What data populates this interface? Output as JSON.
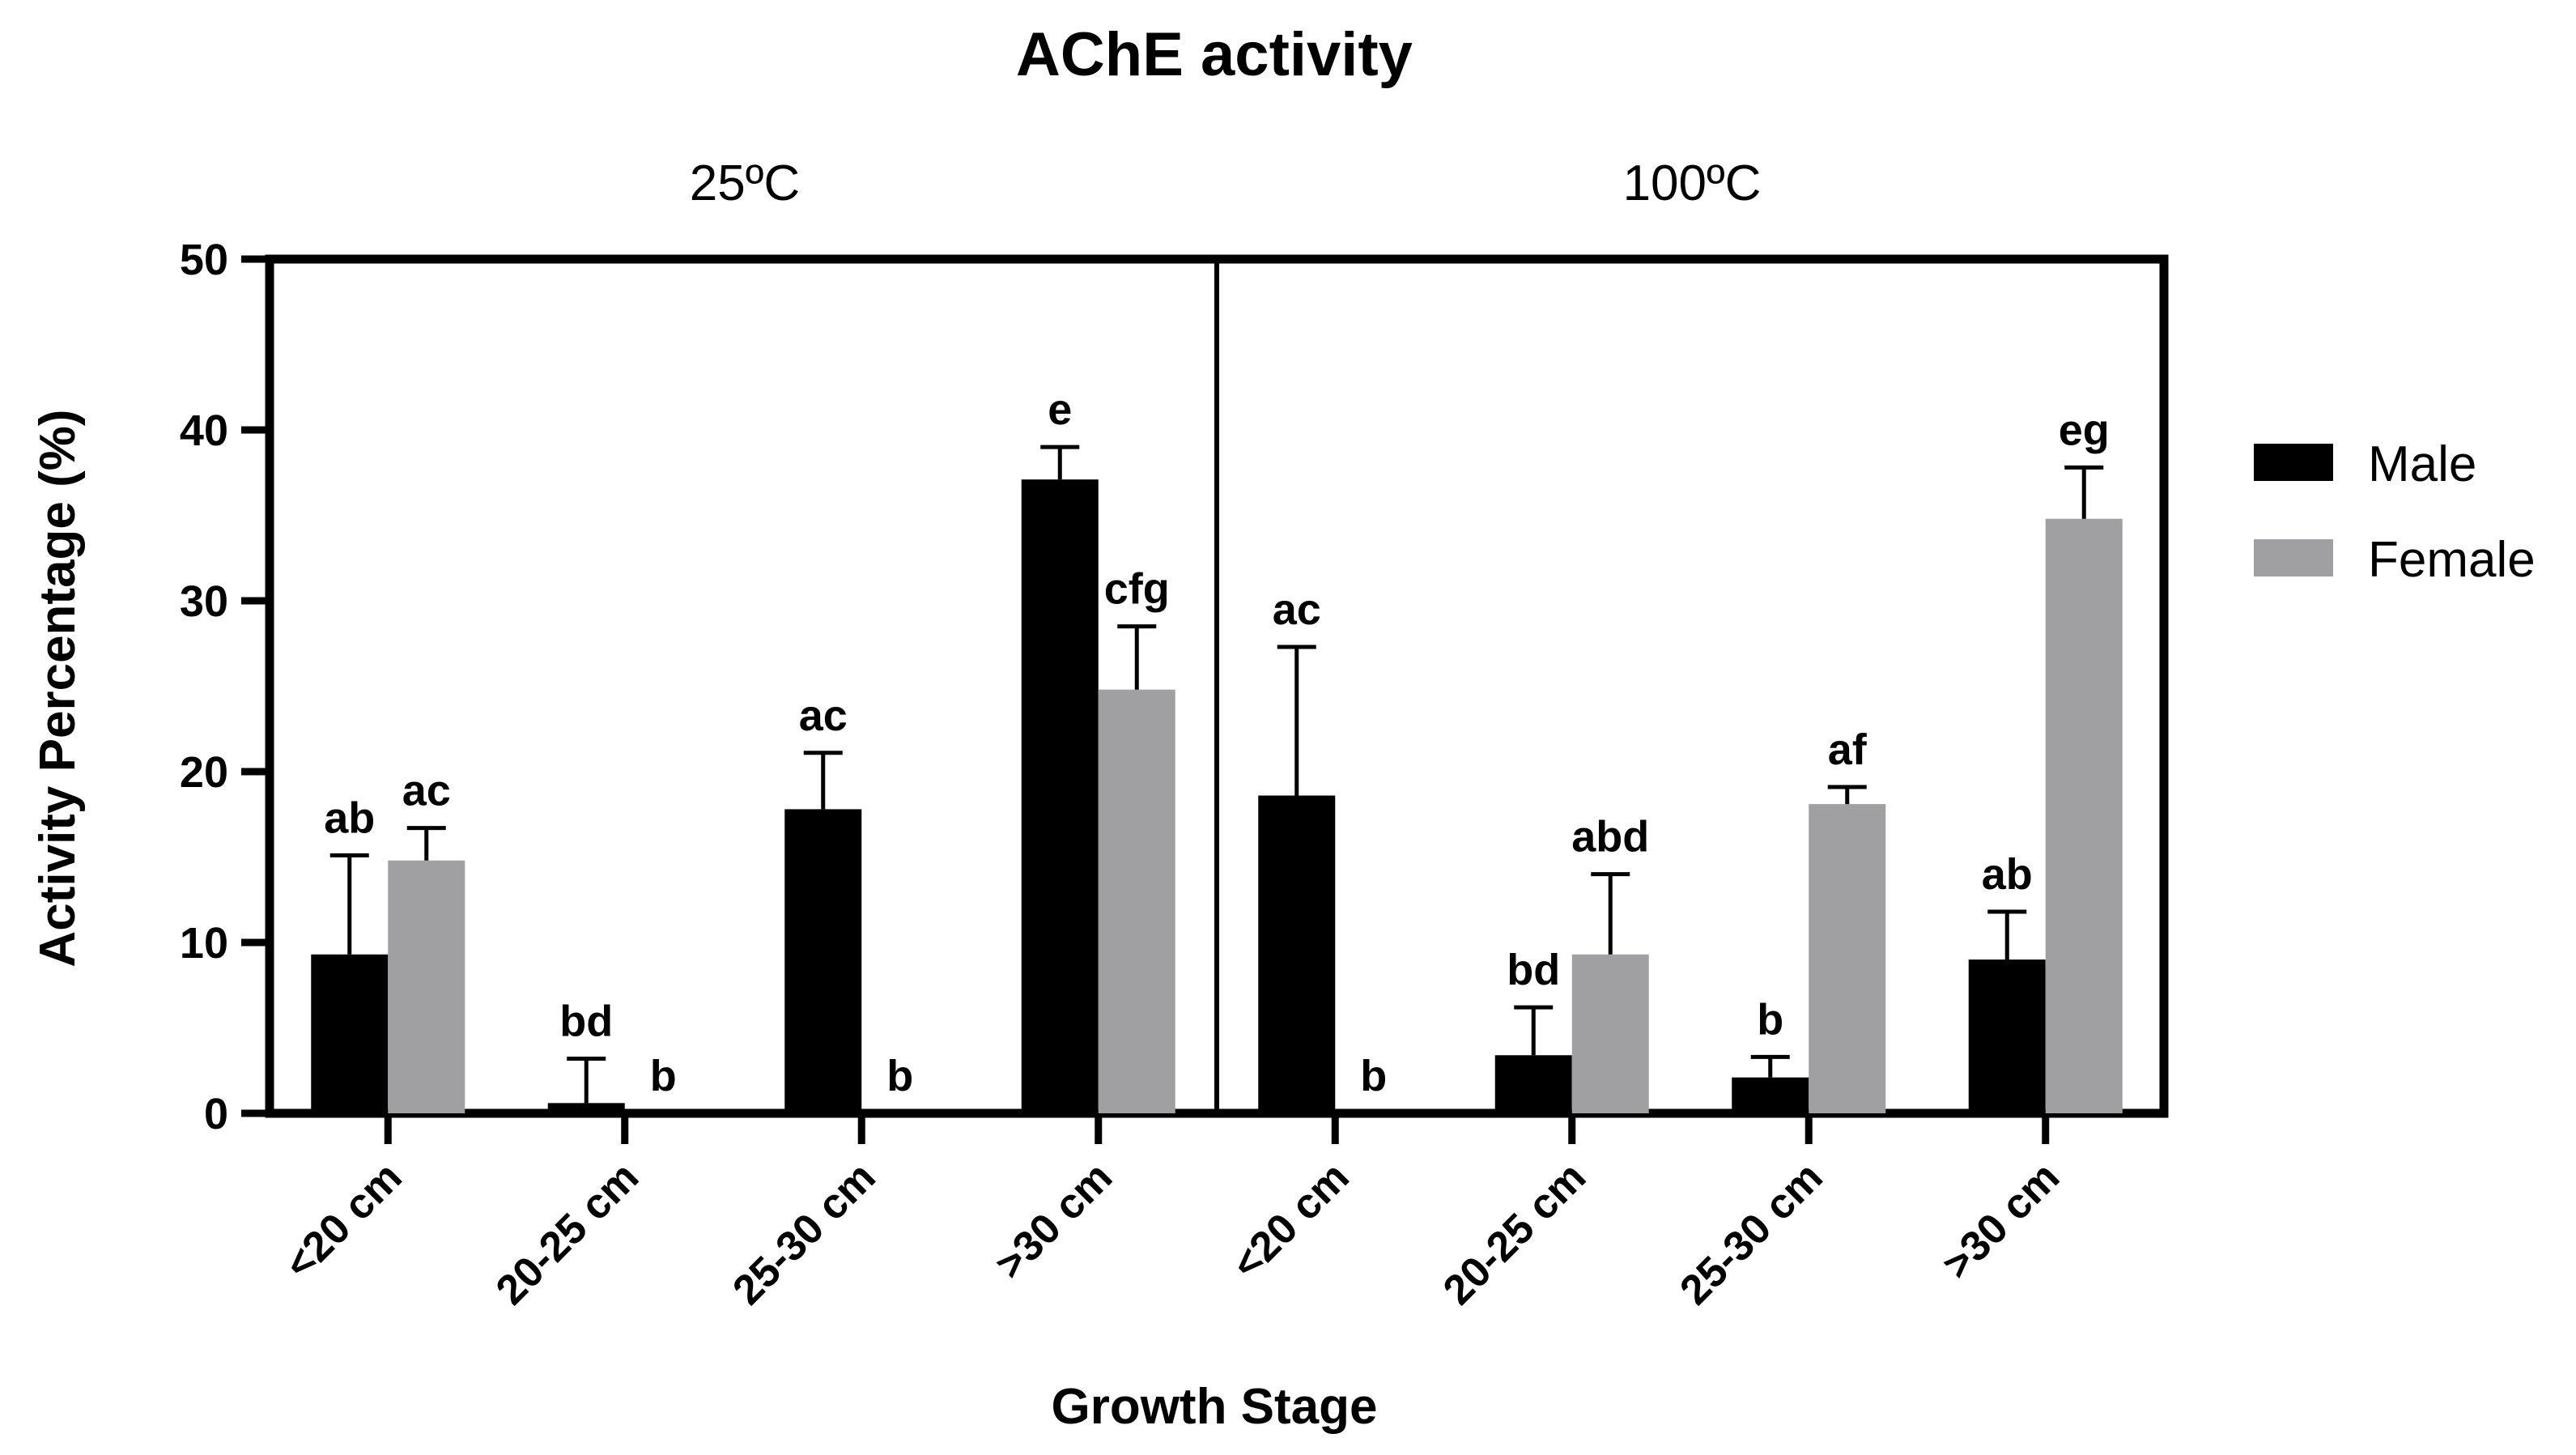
{
  "chart_data": {
    "type": "bar",
    "title": "AChE activity",
    "xlabel": "Growth Stage",
    "ylabel": "Activity Percentage (%)",
    "ylim": [
      0,
      50
    ],
    "yticks": [
      0,
      10,
      20,
      30,
      40,
      50
    ],
    "legend": {
      "position": "right",
      "entries": [
        "Male",
        "Female"
      ]
    },
    "colors": {
      "Male": "#000000",
      "Female": "#a0a0a3"
    },
    "panels": [
      {
        "label": "25ºC",
        "categories": [
          "<20 cm",
          "20-25 cm",
          "25-30 cm",
          ">30 cm"
        ],
        "series": [
          {
            "name": "Male",
            "values": [
              9.3,
              0.6,
              17.8,
              37.1
            ],
            "errors": [
              5.8,
              2.6,
              3.3,
              1.9
            ],
            "labels": [
              "ab",
              "bd",
              "ac",
              "e"
            ]
          },
          {
            "name": "Female",
            "values": [
              14.8,
              0,
              0,
              24.8
            ],
            "errors": [
              1.9,
              0,
              0,
              3.7
            ],
            "labels": [
              "ac",
              "b",
              "b",
              "cfg"
            ]
          }
        ]
      },
      {
        "label": "100ºC",
        "categories": [
          "<20 cm",
          "20-25 cm",
          "25-30 cm",
          ">30 cm"
        ],
        "series": [
          {
            "name": "Male",
            "values": [
              18.6,
              3.4,
              2.1,
              9.0
            ],
            "errors": [
              8.7,
              2.8,
              1.2,
              2.8
            ],
            "labels": [
              "ac",
              "bd",
              "b",
              "ab"
            ]
          },
          {
            "name": "Female",
            "values": [
              0,
              9.3,
              18.1,
              34.8
            ],
            "errors": [
              0,
              4.7,
              1.0,
              3.0
            ],
            "labels": [
              "b",
              "abd",
              "af",
              "eg"
            ]
          }
        ]
      }
    ]
  }
}
